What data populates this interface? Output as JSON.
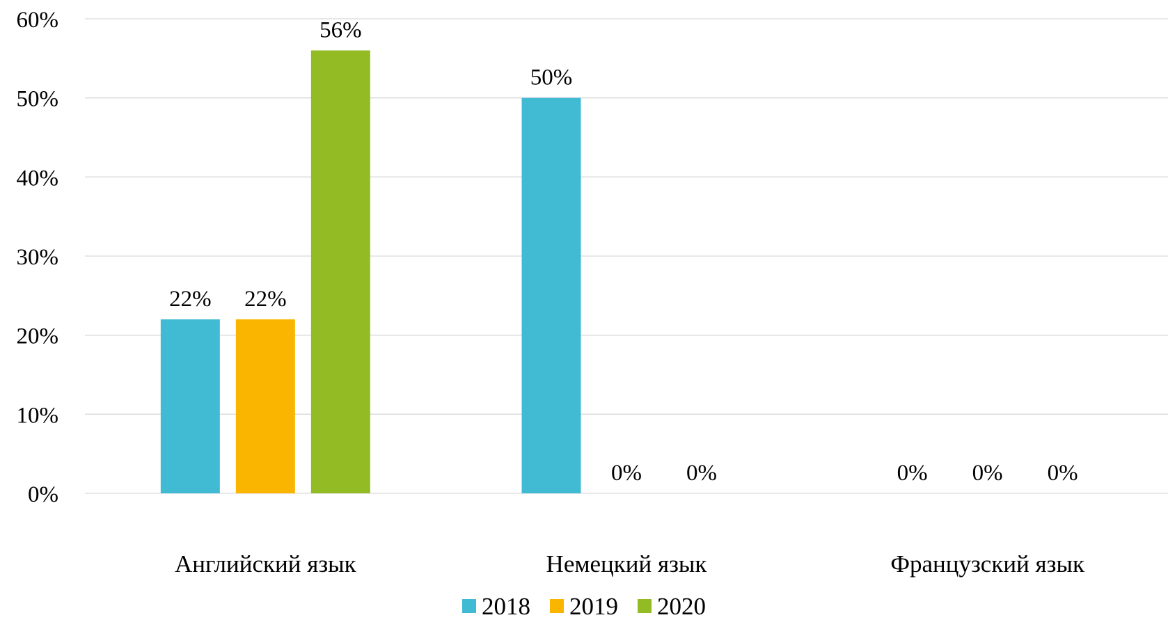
{
  "chart_data": {
    "type": "bar",
    "title": "",
    "xlabel": "",
    "ylabel": "",
    "categories": [
      "Английский язык",
      "Немецкий язык",
      "Французский язык"
    ],
    "series": [
      {
        "name": "2018",
        "color": "#41BAD3",
        "values": [
          0.22,
          0.5,
          0.0
        ],
        "labels": [
          "22%",
          "50%",
          "0%"
        ]
      },
      {
        "name": "2019",
        "color": "#F9B500",
        "values": [
          0.22,
          0.0,
          0.0
        ],
        "labels": [
          "22%",
          "0%",
          "0%"
        ]
      },
      {
        "name": "2020",
        "color": "#93BC24",
        "values": [
          0.56,
          0.0,
          0.0
        ],
        "labels": [
          "56%",
          "0%",
          "0%"
        ]
      }
    ],
    "ylim": [
      0,
      0.6
    ],
    "yticks": [
      0,
      0.1,
      0.2,
      0.3,
      0.4,
      0.5,
      0.6
    ],
    "ytick_labels": [
      "0%",
      "10%",
      "20%",
      "30%",
      "40%",
      "50%",
      "60%"
    ],
    "grid": true,
    "gridline_color": "#D9D9D9",
    "legend_position": "bottom"
  }
}
